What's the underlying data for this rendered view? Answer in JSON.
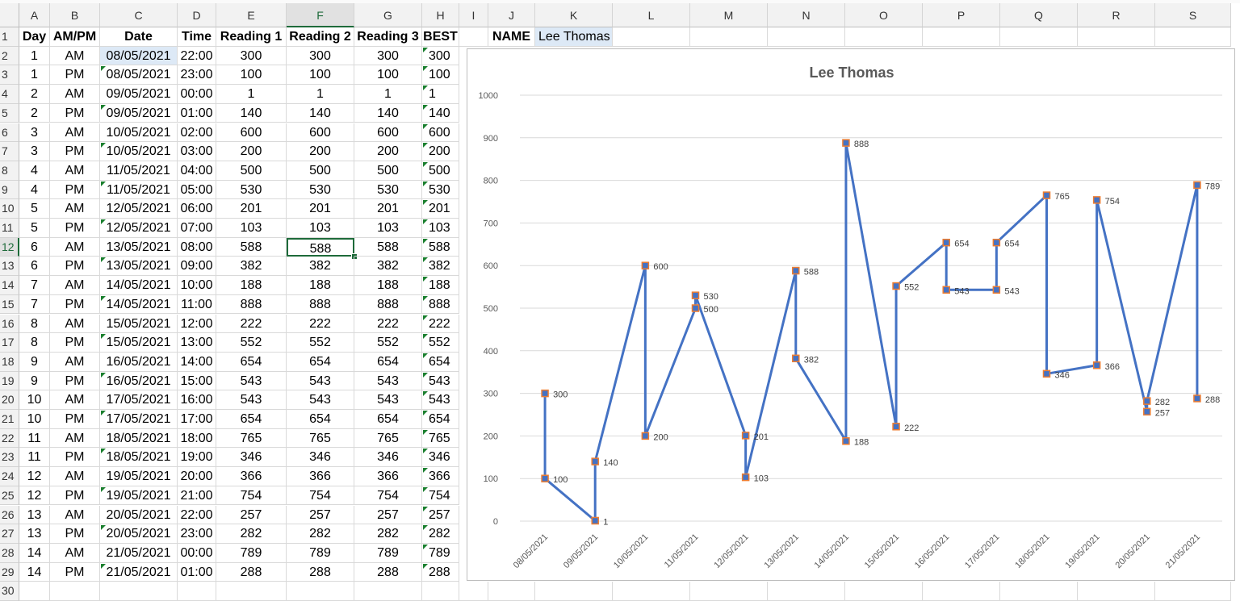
{
  "columns": [
    "A",
    "B",
    "C",
    "D",
    "E",
    "F",
    "G",
    "H",
    "I",
    "J",
    "K",
    "L",
    "M",
    "N",
    "O",
    "P",
    "Q",
    "R",
    "S"
  ],
  "selected_column": "F",
  "selected_row": "12",
  "rows": [
    "1",
    "2",
    "3",
    "4",
    "5",
    "6",
    "7",
    "8",
    "9",
    "10",
    "11",
    "12",
    "13",
    "14",
    "15",
    "16",
    "17",
    "18",
    "19",
    "20",
    "21",
    "22",
    "23",
    "24",
    "25",
    "26",
    "27",
    "28",
    "29",
    "30"
  ],
  "headers": [
    "Day",
    "AM/PM",
    "Date",
    "Time",
    "Reading 1",
    "Reading 2",
    "Reading 3",
    "BEST"
  ],
  "name_label": "NAME",
  "name_value": "Lee Thomas",
  "table": [
    [
      "1",
      "AM",
      "08/05/2021",
      "22:00",
      "300",
      "300",
      "300",
      "300"
    ],
    [
      "1",
      "PM",
      "08/05/2021",
      "23:00",
      "100",
      "100",
      "100",
      "100"
    ],
    [
      "2",
      "AM",
      "09/05/2021",
      "00:00",
      "1",
      "1",
      "1",
      "1"
    ],
    [
      "2",
      "PM",
      "09/05/2021",
      "01:00",
      "140",
      "140",
      "140",
      "140"
    ],
    [
      "3",
      "AM",
      "10/05/2021",
      "02:00",
      "600",
      "600",
      "600",
      "600"
    ],
    [
      "3",
      "PM",
      "10/05/2021",
      "03:00",
      "200",
      "200",
      "200",
      "200"
    ],
    [
      "4",
      "AM",
      "11/05/2021",
      "04:00",
      "500",
      "500",
      "500",
      "500"
    ],
    [
      "4",
      "PM",
      "11/05/2021",
      "05:00",
      "530",
      "530",
      "530",
      "530"
    ],
    [
      "5",
      "AM",
      "12/05/2021",
      "06:00",
      "201",
      "201",
      "201",
      "201"
    ],
    [
      "5",
      "PM",
      "12/05/2021",
      "07:00",
      "103",
      "103",
      "103",
      "103"
    ],
    [
      "6",
      "AM",
      "13/05/2021",
      "08:00",
      "588",
      "588",
      "588",
      "588"
    ],
    [
      "6",
      "PM",
      "13/05/2021",
      "09:00",
      "382",
      "382",
      "382",
      "382"
    ],
    [
      "7",
      "AM",
      "14/05/2021",
      "10:00",
      "188",
      "188",
      "188",
      "188"
    ],
    [
      "7",
      "PM",
      "14/05/2021",
      "11:00",
      "888",
      "888",
      "888",
      "888"
    ],
    [
      "8",
      "AM",
      "15/05/2021",
      "12:00",
      "222",
      "222",
      "222",
      "222"
    ],
    [
      "8",
      "PM",
      "15/05/2021",
      "13:00",
      "552",
      "552",
      "552",
      "552"
    ],
    [
      "9",
      "AM",
      "16/05/2021",
      "14:00",
      "654",
      "654",
      "654",
      "654"
    ],
    [
      "9",
      "PM",
      "16/05/2021",
      "15:00",
      "543",
      "543",
      "543",
      "543"
    ],
    [
      "10",
      "AM",
      "17/05/2021",
      "16:00",
      "543",
      "543",
      "543",
      "543"
    ],
    [
      "10",
      "PM",
      "17/05/2021",
      "17:00",
      "654",
      "654",
      "654",
      "654"
    ],
    [
      "11",
      "AM",
      "18/05/2021",
      "18:00",
      "765",
      "765",
      "765",
      "765"
    ],
    [
      "11",
      "PM",
      "18/05/2021",
      "19:00",
      "346",
      "346",
      "346",
      "346"
    ],
    [
      "12",
      "AM",
      "19/05/2021",
      "20:00",
      "366",
      "366",
      "366",
      "366"
    ],
    [
      "12",
      "PM",
      "19/05/2021",
      "21:00",
      "754",
      "754",
      "754",
      "754"
    ],
    [
      "13",
      "AM",
      "20/05/2021",
      "22:00",
      "257",
      "257",
      "257",
      "257"
    ],
    [
      "13",
      "PM",
      "20/05/2021",
      "23:00",
      "282",
      "282",
      "282",
      "282"
    ],
    [
      "14",
      "AM",
      "21/05/2021",
      "00:00",
      "789",
      "789",
      "789",
      "789"
    ],
    [
      "14",
      "PM",
      "21/05/2021",
      "01:00",
      "288",
      "288",
      "288",
      "288"
    ]
  ],
  "colors": {
    "line": "#4472c4",
    "marker_fill": "#4472c4",
    "marker_edge": "#ed7d31",
    "selection": "#1e6b3a",
    "grid": "#d9d9d9"
  },
  "chart_data": {
    "type": "line",
    "title": "Lee Thomas",
    "xlabel": "",
    "ylabel": "",
    "ylim": [
      0,
      1000
    ],
    "yticks": [
      0,
      100,
      200,
      300,
      400,
      500,
      600,
      700,
      800,
      900,
      1000
    ],
    "categories": [
      "08/05/2021",
      "09/05/2021",
      "10/05/2021",
      "11/05/2021",
      "12/05/2021",
      "13/05/2021",
      "14/05/2021",
      "15/05/2021",
      "16/05/2021",
      "17/05/2021",
      "18/05/2021",
      "19/05/2021",
      "20/05/2021",
      "21/05/2021"
    ],
    "x": [
      "08/05/2021",
      "08/05/2021",
      "09/05/2021",
      "09/05/2021",
      "10/05/2021",
      "10/05/2021",
      "11/05/2021",
      "11/05/2021",
      "12/05/2021",
      "12/05/2021",
      "13/05/2021",
      "13/05/2021",
      "14/05/2021",
      "14/05/2021",
      "15/05/2021",
      "15/05/2021",
      "16/05/2021",
      "16/05/2021",
      "17/05/2021",
      "17/05/2021",
      "18/05/2021",
      "18/05/2021",
      "19/05/2021",
      "19/05/2021",
      "20/05/2021",
      "20/05/2021",
      "21/05/2021",
      "21/05/2021"
    ],
    "values": [
      300,
      100,
      1,
      140,
      600,
      200,
      500,
      530,
      201,
      103,
      588,
      382,
      188,
      888,
      222,
      552,
      654,
      543,
      543,
      654,
      765,
      346,
      366,
      754,
      257,
      282,
      789,
      288
    ],
    "grid": true,
    "legend": "none"
  }
}
